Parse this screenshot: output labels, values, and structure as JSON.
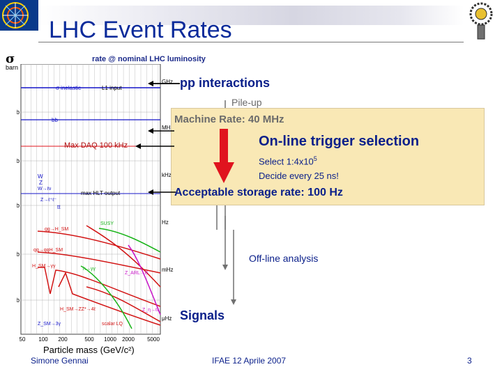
{
  "slide": {
    "title": "LHC Event Rates",
    "page_number": "3",
    "author": "Simone Gennai",
    "event": "IFAE 12 Aprile 2007"
  },
  "plot": {
    "y_symbol": "σ",
    "y_unit": "barn",
    "top_label": "rate @ nominal LHC luminosity",
    "x_label": "Particle mass (GeV/c²)",
    "x_ticks": [
      "50",
      "100",
      "200",
      "500",
      "1000",
      "2000",
      "5000"
    ],
    "left_ticks": [
      "mb",
      "μb",
      "nb",
      "pb",
      "fb"
    ],
    "right_ticks": [
      "GHz",
      "MHz",
      "kHz",
      "Hz",
      "mHz",
      "μHz"
    ],
    "processes": [
      "σ inelastic",
      "bb",
      "W",
      "Z",
      "W→ℓν",
      "Z→ℓ⁺ℓ⁻",
      "tt",
      "gg→H_SM",
      "qq→qqH_SM",
      "H_SM→γγ",
      "h→γγ",
      "SUSY",
      "Z_ARL→ℓℓ",
      "Z_η→ℓℓ",
      "H_SM→ZZ*→4ℓ",
      "scalar LQ",
      "Z_SM→3γ"
    ],
    "level_labels": [
      "L1 input",
      "max HLT output"
    ],
    "colors": {
      "red": "#d21414",
      "green": "#19b419",
      "magenta": "#c814c8",
      "blue": "#1414c8",
      "grid": "#b0b0b0"
    }
  },
  "flow": {
    "pp": "pp interactions",
    "pileup": "Pile-up",
    "machine": "Machine Rate: 40 MHz",
    "maxdaq": "Max DAQ 100 kHz",
    "online": "On-line trigger selection",
    "select_prefix": "Select  1:4x10",
    "select_exp": "5",
    "decide": "Decide every 25 ns!",
    "accept": "Acceptable storage rate: 100 Hz",
    "offline": "Off-line analysis",
    "signals": "Signals",
    "box_color": "#f9e8b5",
    "arrow_color": "#e0141e"
  }
}
